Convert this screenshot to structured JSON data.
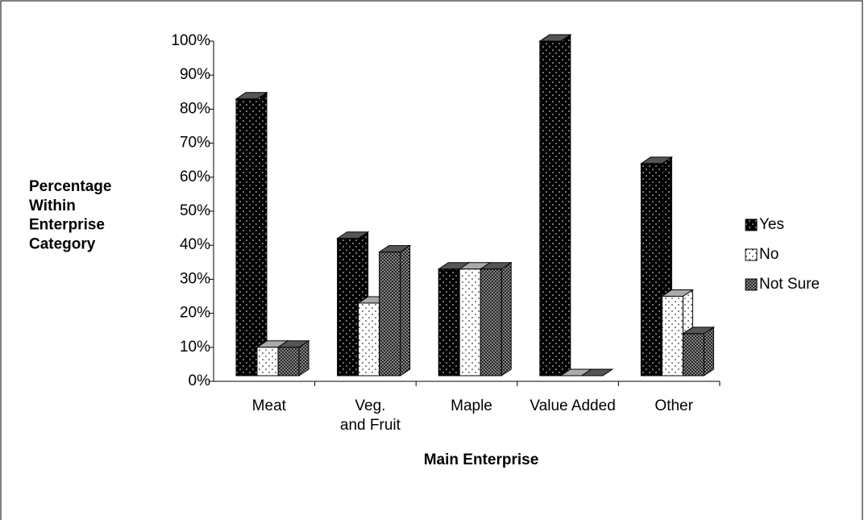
{
  "chart_data": {
    "type": "bar3d",
    "y_label": "Percentage\nWithin\nEnterprise\nCategory",
    "x_label": "Main Enterprise",
    "categories": [
      "Meat",
      "Veg.\nand Fruit",
      "Maple",
      "Value Added",
      "Other"
    ],
    "series": [
      {
        "name": "Yes",
        "color": "#000000",
        "values": [
          83,
          42,
          33,
          100,
          64
        ]
      },
      {
        "name": "No",
        "color": "#ffffff",
        "values": [
          10,
          23,
          33,
          0,
          25
        ]
      },
      {
        "name": "Not Sure",
        "color": "#404040",
        "values": [
          10,
          38,
          33,
          0,
          14
        ]
      }
    ],
    "ylim": [
      0,
      100
    ],
    "yticks": [
      {
        "value": 0,
        "label": "0%"
      },
      {
        "value": 10,
        "label": "10%"
      },
      {
        "value": 20,
        "label": "20%"
      },
      {
        "value": 30,
        "label": "30%"
      },
      {
        "value": 40,
        "label": "40%"
      },
      {
        "value": 50,
        "label": "50%"
      },
      {
        "value": 60,
        "label": "60%"
      },
      {
        "value": 70,
        "label": "70%"
      },
      {
        "value": 80,
        "label": "80%"
      },
      {
        "value": 90,
        "label": "90%"
      },
      {
        "value": 100,
        "label": "100%"
      }
    ],
    "legend": "right"
  }
}
